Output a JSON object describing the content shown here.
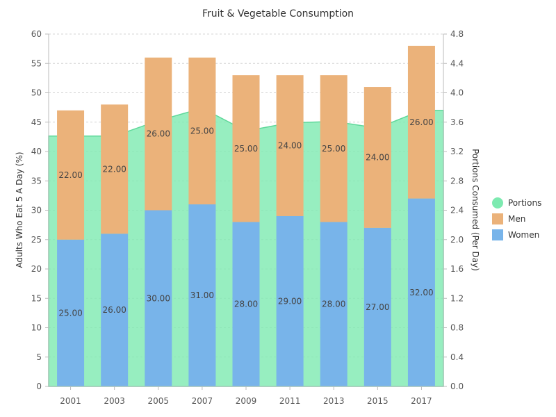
{
  "chart_data": {
    "type": "bar",
    "title": "Fruit & Vegetable Consumption",
    "categories": [
      "2001",
      "2003",
      "2005",
      "2007",
      "2009",
      "2011",
      "2013",
      "2015",
      "2017"
    ],
    "ylabel": "Adults Who Eat 5 A Day (%)",
    "y2label": "Portions Consumed (Per Day)",
    "ylim": [
      0,
      60
    ],
    "y2lim": [
      0,
      4.8
    ],
    "yticks": [
      "0",
      "5",
      "10",
      "15",
      "20",
      "25",
      "30",
      "35",
      "40",
      "45",
      "50",
      "55",
      "60"
    ],
    "y2ticks": [
      "0.0",
      "0.4",
      "0.8",
      "1.2",
      "1.6",
      "2.0",
      "2.4",
      "2.8",
      "3.2",
      "3.6",
      "4.0",
      "4.4",
      "4.8"
    ],
    "grid": true,
    "stacked": true,
    "legend_position": "right",
    "series": [
      {
        "name": "Portions",
        "type": "area",
        "axis": "right",
        "color": "#7deab0",
        "values": [
          3.41,
          3.41,
          3.62,
          3.79,
          3.48,
          3.59,
          3.61,
          3.52,
          3.76
        ]
      },
      {
        "name": "Men",
        "type": "bar",
        "axis": "left",
        "color": "#ebb27a",
        "values": [
          22,
          22,
          26,
          25,
          25,
          24,
          25,
          24,
          26
        ],
        "labels": [
          "22.00",
          "22.00",
          "26.00",
          "25.00",
          "25.00",
          "24.00",
          "25.00",
          "24.00",
          "26.00"
        ]
      },
      {
        "name": "Women",
        "type": "bar",
        "axis": "left",
        "color": "#78b4ea",
        "values": [
          25,
          26,
          30,
          31,
          28,
          29,
          28,
          27,
          32
        ],
        "labels": [
          "25.00",
          "26.00",
          "30.00",
          "31.00",
          "28.00",
          "29.00",
          "28.00",
          "27.00",
          "32.00"
        ]
      }
    ]
  }
}
